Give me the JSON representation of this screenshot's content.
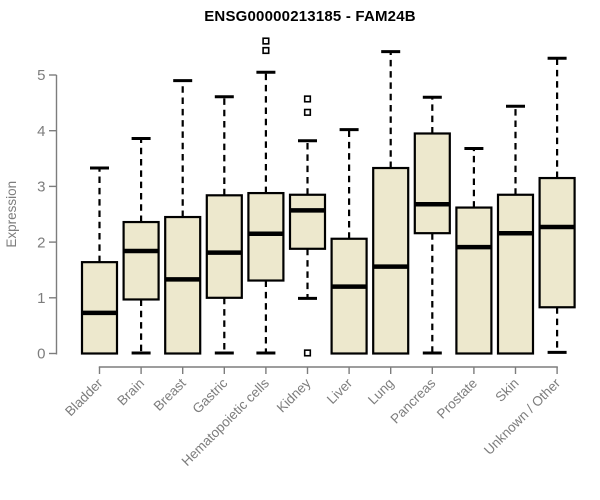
{
  "title": "ENSG00000213185 - FAM24B",
  "colors": {
    "background": "#ffffff",
    "box_fill": "#EDE8CD",
    "box_stroke": "#000000",
    "median": "#000000",
    "whisker": "#000000",
    "outlier_stroke": "#000000",
    "outlier_fill": "#ffffff",
    "axis": "#7d7d7d",
    "axis_label": "#7d7d7d",
    "title": "#000000"
  },
  "chart_data": {
    "type": "boxplot",
    "title": "ENSG00000213185 - FAM24B",
    "xlabel": "",
    "ylabel": "Expression",
    "ylim": [
      0,
      5
    ],
    "yticks": [
      0,
      1,
      2,
      3,
      4,
      5
    ],
    "grid": false,
    "legend": "none",
    "categories": [
      "Bladder",
      "Brain",
      "Breast",
      "Gastric",
      "Hematopoietic cells",
      "Kidney",
      "Liver",
      "Lung",
      "Pancreas",
      "Prostate",
      "Skin",
      "Unknown / Other"
    ],
    "series": [
      {
        "name": "Bladder",
        "whisker_low": 0,
        "q1": 0,
        "median": 0.73,
        "q3": 1.64,
        "whisker_high": 3.33,
        "outliers": []
      },
      {
        "name": "Brain",
        "whisker_low": 0.01,
        "q1": 0.97,
        "median": 1.84,
        "q3": 2.36,
        "whisker_high": 3.86,
        "outliers": []
      },
      {
        "name": "Breast",
        "whisker_low": 0,
        "q1": 0,
        "median": 1.33,
        "q3": 2.45,
        "whisker_high": 4.9,
        "outliers": []
      },
      {
        "name": "Gastric",
        "whisker_low": 0.01,
        "q1": 1.0,
        "median": 1.81,
        "q3": 2.84,
        "whisker_high": 4.61,
        "outliers": []
      },
      {
        "name": "Hematopoietic cells",
        "whisker_low": 0.01,
        "q1": 1.31,
        "median": 2.15,
        "q3": 2.88,
        "whisker_high": 5.05,
        "outliers": [
          5.44,
          5.61
        ]
      },
      {
        "name": "Kidney",
        "whisker_low": 0.99,
        "q1": 1.88,
        "median": 2.57,
        "q3": 2.85,
        "whisker_high": 3.82,
        "outliers": [
          4.33,
          4.57,
          0.01
        ]
      },
      {
        "name": "Liver",
        "whisker_low": 0,
        "q1": 0,
        "median": 1.2,
        "q3": 2.06,
        "whisker_high": 4.02,
        "outliers": []
      },
      {
        "name": "Lung",
        "whisker_low": 0,
        "q1": 0,
        "median": 1.56,
        "q3": 3.33,
        "whisker_high": 5.42,
        "outliers": []
      },
      {
        "name": "Pancreas",
        "whisker_low": 0.01,
        "q1": 2.16,
        "median": 2.68,
        "q3": 3.95,
        "whisker_high": 4.6,
        "outliers": []
      },
      {
        "name": "Prostate",
        "whisker_low": 0,
        "q1": 0,
        "median": 1.91,
        "q3": 2.62,
        "whisker_high": 3.68,
        "outliers": []
      },
      {
        "name": "Skin",
        "whisker_low": 0,
        "q1": 0,
        "median": 2.16,
        "q3": 2.85,
        "whisker_high": 4.44,
        "outliers": []
      },
      {
        "name": "Unknown / Other",
        "whisker_low": 0.02,
        "q1": 0.83,
        "median": 2.27,
        "q3": 3.15,
        "whisker_high": 5.3,
        "outliers": []
      }
    ]
  }
}
